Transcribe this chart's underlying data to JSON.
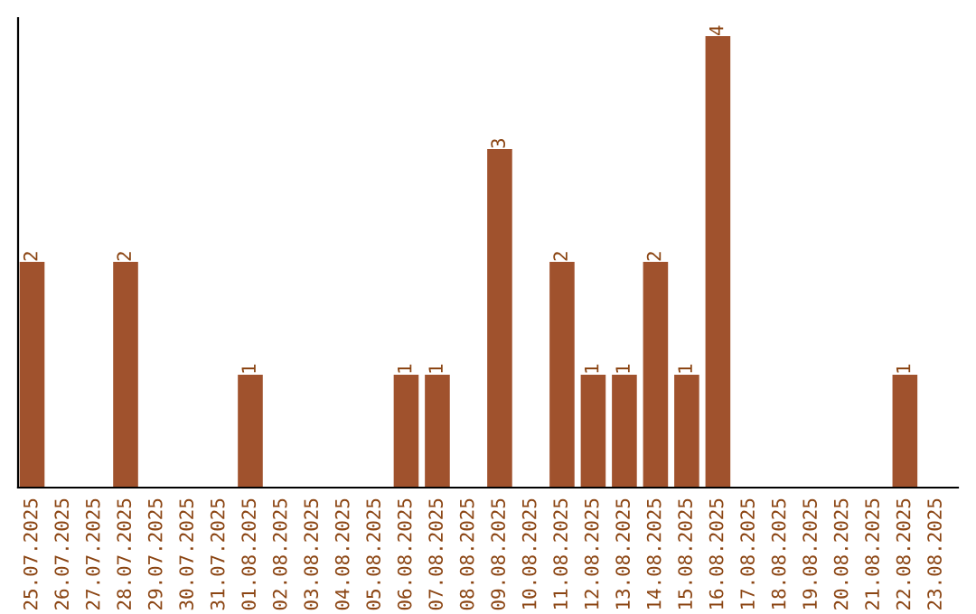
{
  "chart_data": {
    "type": "bar",
    "categories": [
      "25.07.2025",
      "26.07.2025",
      "27.07.2025",
      "28.07.2025",
      "29.07.2025",
      "30.07.2025",
      "31.07.2025",
      "01.08.2025",
      "02.08.2025",
      "03.08.2025",
      "04.08.2025",
      "05.08.2025",
      "06.08.2025",
      "07.08.2025",
      "08.08.2025",
      "09.08.2025",
      "10.08.2025",
      "11.08.2025",
      "12.08.2025",
      "13.08.2025",
      "14.08.2025",
      "15.08.2025",
      "16.08.2025",
      "17.08.2025",
      "18.08.2025",
      "19.08.2025",
      "20.08.2025",
      "21.08.2025",
      "22.08.2025",
      "23.08.2025"
    ],
    "values": [
      2,
      0,
      0,
      2,
      0,
      0,
      0,
      1,
      0,
      0,
      0,
      0,
      1,
      1,
      0,
      3,
      0,
      2,
      1,
      1,
      2,
      1,
      4,
      0,
      0,
      0,
      0,
      0,
      1,
      0
    ],
    "value_labels": [
      "2",
      null,
      null,
      "2",
      null,
      null,
      null,
      "1",
      null,
      null,
      null,
      null,
      "1",
      "1",
      null,
      "3",
      null,
      "2",
      "1",
      "1",
      "2",
      "1",
      "4",
      null,
      null,
      null,
      null,
      null,
      "1",
      null
    ],
    "color": "#a0522d",
    "tick_labels": "x",
    "grid": false
  }
}
